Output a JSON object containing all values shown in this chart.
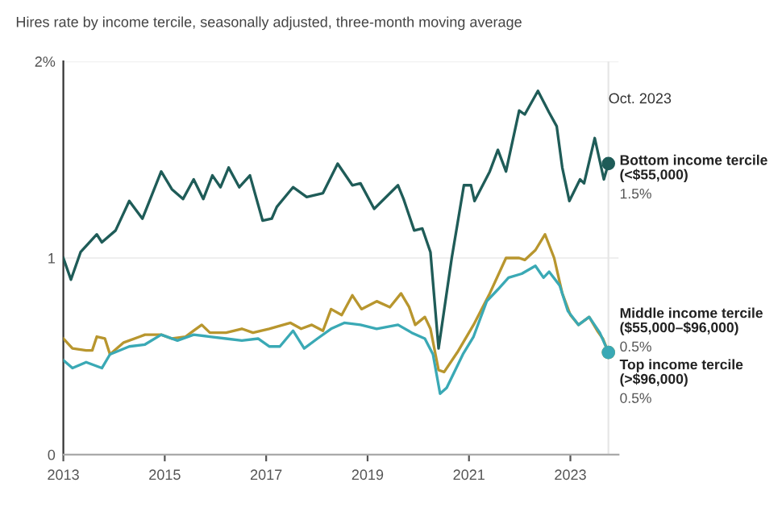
{
  "chart_data": {
    "type": "line",
    "title": "Hires rate by income tercile, seasonally adjusted, three-month moving average",
    "xlim": [
      2013,
      2023.95
    ],
    "xticks": [
      2013,
      2015,
      2017,
      2019,
      2021,
      2023
    ],
    "ylim": [
      0,
      2
    ],
    "yticks": [
      0,
      1,
      {
        "value": 2,
        "label": "2%"
      }
    ],
    "grid": "y",
    "legend": false,
    "marker": "none",
    "line_style": "solid",
    "ref_lines": [
      {
        "axis": "x",
        "value": 2023.75,
        "label": "Oct. 2023",
        "color": "#e6e6e6"
      }
    ],
    "series": [
      {
        "name": "Bottom income tercile\n(<$55,000)",
        "color": "#1f5c58",
        "x": [
          2013.0,
          2013.15,
          2013.34,
          2013.66,
          2013.76,
          2014.03,
          2014.3,
          2014.56,
          2014.93,
          2015.14,
          2015.36,
          2015.57,
          2015.76,
          2015.94,
          2016.1,
          2016.26,
          2016.47,
          2016.68,
          2016.93,
          2017.11,
          2017.21,
          2017.53,
          2017.8,
          2018.12,
          2018.41,
          2018.7,
          2018.86,
          2019.13,
          2019.6,
          2019.71,
          2019.92,
          2020.08,
          2020.24,
          2020.4,
          2020.66,
          2020.9,
          2021.04,
          2021.11,
          2021.41,
          2021.57,
          2021.73,
          2021.99,
          2022.1,
          2022.36,
          2022.58,
          2022.73,
          2022.84,
          2022.98,
          2023.19,
          2023.27,
          2023.48,
          2023.66,
          2023.75
        ],
        "values": [
          1.0,
          0.89,
          1.03,
          1.12,
          1.08,
          1.14,
          1.29,
          1.2,
          1.44,
          1.35,
          1.3,
          1.4,
          1.3,
          1.42,
          1.36,
          1.46,
          1.36,
          1.42,
          1.19,
          1.2,
          1.26,
          1.36,
          1.31,
          1.33,
          1.48,
          1.37,
          1.38,
          1.25,
          1.37,
          1.3,
          1.14,
          1.15,
          1.03,
          0.54,
          1.0,
          1.37,
          1.37,
          1.29,
          1.44,
          1.55,
          1.44,
          1.75,
          1.73,
          1.85,
          1.74,
          1.67,
          1.46,
          1.29,
          1.4,
          1.38,
          1.61,
          1.4,
          1.48
        ],
        "value_labels": [
          null,
          null,
          null,
          null,
          null,
          null,
          null,
          null,
          null,
          null,
          null,
          null,
          null,
          null,
          null,
          null,
          null,
          null,
          null,
          null,
          null,
          null,
          null,
          null,
          null,
          null,
          null,
          null,
          null,
          null,
          null,
          null,
          null,
          null,
          null,
          null,
          null,
          null,
          null,
          null,
          null,
          null,
          null,
          null,
          null,
          null,
          null,
          null,
          null,
          null,
          null,
          null,
          "1.5%"
        ]
      },
      {
        "name": "Middle income tercile\n($55,000–$96,000)",
        "color": "#b8962e",
        "x": [
          2013.0,
          2013.18,
          2013.45,
          2013.57,
          2013.66,
          2013.82,
          2013.92,
          2014.19,
          2014.51,
          2014.61,
          2014.93,
          2015.14,
          2015.41,
          2015.57,
          2015.73,
          2015.89,
          2016.21,
          2016.52,
          2016.74,
          2017.06,
          2017.48,
          2017.69,
          2017.9,
          2018.12,
          2018.28,
          2018.49,
          2018.7,
          2018.88,
          2019.18,
          2019.44,
          2019.66,
          2019.82,
          2019.94,
          2020.13,
          2020.24,
          2020.4,
          2020.51,
          2020.77,
          2021.09,
          2021.41,
          2021.73,
          2021.99,
          2022.1,
          2022.31,
          2022.5,
          2022.68,
          2022.84,
          2023.0,
          2023.16,
          2023.37,
          2023.53,
          2023.64,
          2023.75
        ],
        "values": [
          0.59,
          0.54,
          0.53,
          0.53,
          0.6,
          0.59,
          0.51,
          0.57,
          0.6,
          0.61,
          0.61,
          0.59,
          0.6,
          0.63,
          0.66,
          0.62,
          0.62,
          0.64,
          0.62,
          0.64,
          0.67,
          0.64,
          0.66,
          0.63,
          0.74,
          0.71,
          0.81,
          0.74,
          0.78,
          0.75,
          0.82,
          0.75,
          0.66,
          0.7,
          0.64,
          0.43,
          0.42,
          0.52,
          0.66,
          0.82,
          1.0,
          1.0,
          0.99,
          1.04,
          1.12,
          1.0,
          0.82,
          0.71,
          0.66,
          0.7,
          0.63,
          0.59,
          0.52
        ],
        "value_labels": [
          null,
          null,
          null,
          null,
          null,
          null,
          null,
          null,
          null,
          null,
          null,
          null,
          null,
          null,
          null,
          null,
          null,
          null,
          null,
          null,
          null,
          null,
          null,
          null,
          null,
          null,
          null,
          null,
          null,
          null,
          null,
          null,
          null,
          null,
          null,
          null,
          null,
          null,
          null,
          null,
          null,
          null,
          null,
          null,
          null,
          null,
          null,
          null,
          null,
          null,
          null,
          null,
          "0.5%"
        ]
      },
      {
        "name": "Top income tercile\n(>$96,000)",
        "color": "#3aa9b5",
        "x": [
          2013.0,
          2013.18,
          2013.45,
          2013.76,
          2013.92,
          2014.3,
          2014.61,
          2014.93,
          2015.25,
          2015.57,
          2015.89,
          2016.21,
          2016.52,
          2016.84,
          2017.06,
          2017.27,
          2017.53,
          2017.75,
          2018.01,
          2018.28,
          2018.54,
          2018.86,
          2019.18,
          2019.6,
          2019.87,
          2020.13,
          2020.29,
          2020.43,
          2020.56,
          2020.88,
          2021.09,
          2021.35,
          2021.57,
          2021.78,
          2022.04,
          2022.31,
          2022.47,
          2022.58,
          2022.79,
          2022.95,
          2023.16,
          2023.37,
          2023.58,
          2023.75
        ],
        "values": [
          0.48,
          0.44,
          0.47,
          0.44,
          0.51,
          0.55,
          0.56,
          0.61,
          0.58,
          0.61,
          0.6,
          0.59,
          0.58,
          0.59,
          0.55,
          0.55,
          0.63,
          0.54,
          0.59,
          0.64,
          0.67,
          0.66,
          0.64,
          0.66,
          0.62,
          0.59,
          0.51,
          0.31,
          0.34,
          0.51,
          0.6,
          0.78,
          0.84,
          0.9,
          0.92,
          0.96,
          0.9,
          0.93,
          0.86,
          0.73,
          0.66,
          0.7,
          0.62,
          0.52
        ],
        "value_labels": [
          null,
          null,
          null,
          null,
          null,
          null,
          null,
          null,
          null,
          null,
          null,
          null,
          null,
          null,
          null,
          null,
          null,
          null,
          null,
          null,
          null,
          null,
          null,
          null,
          null,
          null,
          null,
          null,
          null,
          null,
          null,
          null,
          null,
          null,
          null,
          null,
          null,
          null,
          null,
          null,
          null,
          null,
          null,
          "0.5%"
        ]
      }
    ]
  }
}
